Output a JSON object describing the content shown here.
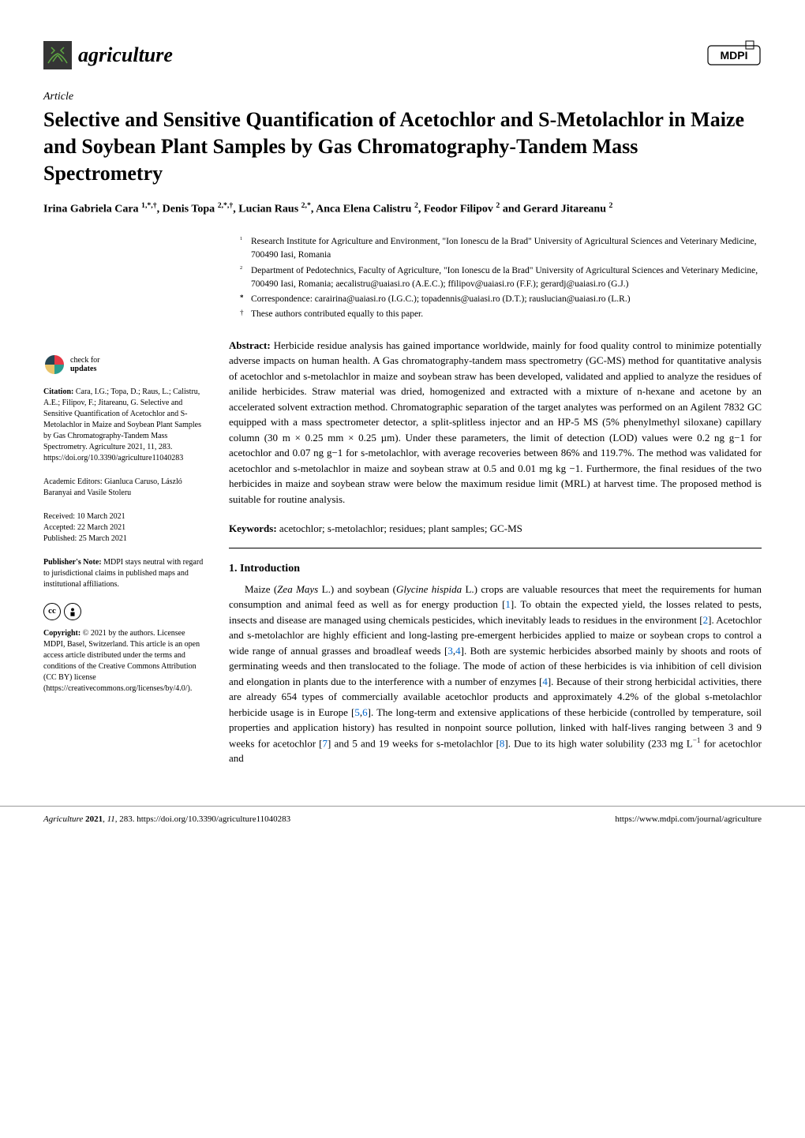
{
  "header": {
    "journal_name": "agriculture",
    "publisher_logo": "MDPI",
    "journal_icon_bg": "#353535",
    "journal_icon_fg": "#5fa843"
  },
  "article": {
    "type_label": "Article",
    "title": "Selective and Sensitive Quantification of Acetochlor and S-Metolachlor in Maize and Soybean Plant Samples by Gas Chromatography-Tandem Mass Spectrometry",
    "authors_line": "Irina Gabriela Cara 1,*,†, Denis Topa 2,*,†, Lucian Raus 2,*, Anca Elena Calistru 2, Feodor Filipov 2 and Gerard Jitareanu 2"
  },
  "affiliations": {
    "rows": [
      {
        "num": "1",
        "text": "Research Institute for Agriculture and Environment, \"Ion Ionescu de la Brad\" University of Agricultural Sciences and Veterinary Medicine, 700490 Iasi, Romania"
      },
      {
        "num": "2",
        "text": "Department of Pedotechnics, Faculty of Agriculture, \"Ion Ionescu de la Brad\" University of Agricultural Sciences and Veterinary Medicine, 700490 Iasi, Romania; aecalistru@uaiasi.ro (A.E.C.); ffilipov@uaiasi.ro (F.F.); gerardj@uaiasi.ro (G.J.)"
      },
      {
        "num": "*",
        "text": "Correspondence: carairina@uaiasi.ro (I.G.C.); topadennis@uaiasi.ro (D.T.); rauslucian@uaiasi.ro (L.R.)"
      },
      {
        "num": "†",
        "text": "These authors contributed equally to this paper."
      }
    ]
  },
  "abstract": {
    "label": "Abstract:",
    "text": "Herbicide residue analysis has gained importance worldwide, mainly for food quality control to minimize potentially adverse impacts on human health. A Gas chromatography-tandem mass spectrometry (GC-MS) method for quantitative analysis of acetochlor and s-metolachlor in maize and soybean straw has been developed, validated and applied to analyze the residues of anilide herbicides. Straw material was dried, homogenized and extracted with a mixture of n-hexane and acetone by an accelerated solvent extraction method. Chromatographic separation of the target analytes was performed on an Agilent 7832 GC equipped with a mass spectrometer detector, a split-splitless injector and an HP-5 MS (5% phenylmethyl siloxane) capillary column (30 m × 0.25 mm × 0.25 µm). Under these parameters, the limit of detection (LOD) values were 0.2 ng g−1 for acetochlor and 0.07 ng g−1 for s-metolachlor, with average recoveries between 86% and 119.7%. The method was validated for acetochlor and s-metolachlor in maize and soybean straw at 0.5 and 0.01 mg kg −1. Furthermore, the final residues of the two herbicides in maize and soybean straw were below the maximum residue limit (MRL) at harvest time. The proposed method is suitable for routine analysis."
  },
  "keywords": {
    "label": "Keywords:",
    "text": "acetochlor; s-metolachlor; residues; plant samples; GC-MS"
  },
  "section": {
    "heading": "1. Introduction",
    "body_html": "Maize (<i>Zea Mays</i> L.) and soybean (<i>Glycine hispida</i> L.) crops are valuable resources that meet the requirements for human consumption and animal feed as well as for energy production [<span class='ref-link'>1</span>]. To obtain the expected yield, the losses related to pests, insects and disease are managed using chemicals pesticides, which inevitably leads to residues in the environment [<span class='ref-link'>2</span>]. Acetochlor and s-metolachlor are highly efficient and long-lasting pre-emergent herbicides applied to maize or soybean crops to control a wide range of annual grasses and broadleaf weeds [<span class='ref-link'>3</span>,<span class='ref-link'>4</span>]. Both are systemic herbicides absorbed mainly by shoots and roots of germinating weeds and then translocated to the foliage. The mode of action of these herbicides is via inhibition of cell division and elongation in plants due to the interference with a number of enzymes [<span class='ref-link'>4</span>]. Because of their strong herbicidal activities, there are already 654 types of commercially available acetochlor products and approximately 4.2% of the global s-metolachlor herbicide usage is in Europe [<span class='ref-link'>5</span>,<span class='ref-link'>6</span>]. The long-term and extensive applications of these herbicide (controlled by temperature, soil properties and application history) has resulted in nonpoint source pollution, linked with half-lives ranging between 3 and 9 weeks for acetochlor [<span class='ref-link'>7</span>] and 5 and 19 weeks for s-metolachlor [<span class='ref-link'>8</span>]. Due to its high water solubility (233 mg L<sup>−1</sup> for acetochlor and"
  },
  "sidebar": {
    "check_updates": {
      "line1": "check for",
      "line2": "updates"
    },
    "citation": {
      "label": "Citation:",
      "text": "Cara, I.G.; Topa, D.; Raus, L.; Calistru, A.E.; Filipov, F.; Jitareanu, G. Selective and Sensitive Quantification of Acetochlor and S-Metolachlor in Maize and Soybean Plant Samples by Gas Chromatography-Tandem Mass Spectrometry. Agriculture 2021, 11, 283. https://doi.org/10.3390/agriculture11040283"
    },
    "editors": {
      "text": "Academic Editors: Gianluca Caruso, László Baranyai and Vasile Stoleru"
    },
    "dates": {
      "received": "Received: 10 March 2021",
      "accepted": "Accepted: 22 March 2021",
      "published": "Published: 25 March 2021"
    },
    "publishers_note": {
      "label": "Publisher's Note:",
      "text": "MDPI stays neutral with regard to jurisdictional claims in published maps and institutional affiliations."
    },
    "copyright": {
      "label": "Copyright:",
      "text": "© 2021 by the authors. Licensee MDPI, Basel, Switzerland. This article is an open access article distributed under the terms and conditions of the Creative Commons Attribution (CC BY) license (https://creativecommons.org/licenses/by/4.0/)."
    }
  },
  "footer": {
    "left": "Agriculture 2021, 11, 283. https://doi.org/10.3390/agriculture11040283",
    "right": "https://www.mdpi.com/journal/agriculture"
  },
  "colors": {
    "text": "#000000",
    "background": "#ffffff",
    "ref_link": "#0066cc",
    "check_icon_colors": [
      "#e63946",
      "#2a9d8f",
      "#e9c46a",
      "#264653"
    ]
  },
  "typography": {
    "body_font": "Palatino Linotype, Book Antiqua, Palatino, serif",
    "title_size_pt": 20,
    "body_size_pt": 10,
    "sidebar_size_pt": 7.5
  }
}
